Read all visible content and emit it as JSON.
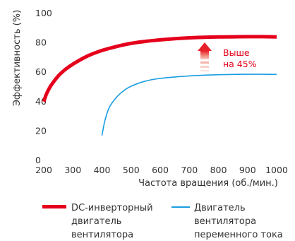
{
  "chart_data": {
    "type": "line",
    "xlabel": "Частота вращения (об./мин.)",
    "ylabel": "Эффективность (%)",
    "xlim": [
      200,
      1000
    ],
    "ylim": [
      0,
      100
    ],
    "x_ticks": [
      "200",
      "300",
      "400",
      "500",
      "600",
      "700",
      "800",
      "900",
      "1000"
    ],
    "y_ticks": [
      "0",
      "20",
      "40",
      "60",
      "80",
      "100"
    ],
    "grid": false,
    "legend_position": "bottom",
    "series": [
      {
        "name": "DC-инверторный двигатель вентилятора",
        "legend_lines": [
          "DC-инверторный",
          "двигатель",
          "вентилятора"
        ],
        "color": "#e5001c",
        "style": "thick",
        "x": [
          200,
          210,
          225,
          250,
          275,
          300,
          350,
          400,
          450,
          500,
          550,
          600,
          650,
          700,
          750,
          800,
          850,
          900,
          950,
          1000
        ],
        "y": [
          40,
          45.5,
          51,
          57.5,
          62,
          65.5,
          71,
          74.8,
          77.5,
          79.6,
          81,
          82,
          82.8,
          83.4,
          83.8,
          84,
          84.1,
          84.2,
          84.2,
          84
        ]
      },
      {
        "name": "Двигатель вентилятора переменного тока",
        "legend_lines": [
          "Двигатель",
          "вентилятора",
          "переменного тока"
        ],
        "color": "#1a9de0",
        "style": "thin",
        "x": [
          400,
          410,
          425,
          450,
          475,
          500,
          550,
          600,
          650,
          700,
          750,
          800,
          850,
          900,
          950,
          1000
        ],
        "y": [
          17,
          27,
          36,
          43,
          47.5,
          50.5,
          54,
          55.8,
          56.8,
          57.5,
          58,
          58.3,
          58.5,
          58.6,
          58.6,
          58.5
        ]
      }
    ],
    "annotation": {
      "lines": [
        "Выше",
        "на 45%"
      ],
      "color": "#e5001c",
      "icon": "up-arrow-icon"
    }
  }
}
